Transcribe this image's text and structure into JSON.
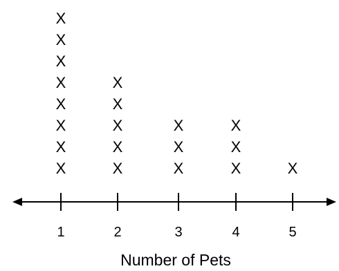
{
  "chart_data": {
    "type": "dot",
    "marker": "X",
    "categories": [
      "1",
      "2",
      "3",
      "4",
      "5"
    ],
    "values": [
      8,
      5,
      3,
      3,
      1
    ],
    "xlabel": "Number of Pets",
    "ylabel": "",
    "title": "",
    "grid": false,
    "legend": "none",
    "colors": {
      "ink": "#000000",
      "background": "#ffffff"
    }
  }
}
